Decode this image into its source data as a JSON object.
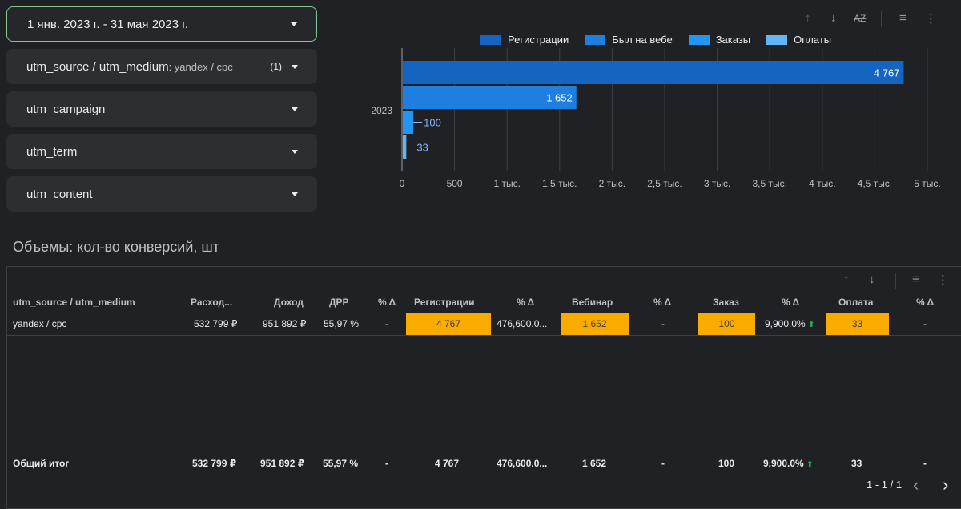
{
  "filters": {
    "date_range": "1 янв. 2023 г. - 31 мая 2023 г.",
    "source_medium": {
      "label": "utm_source / utm_medium",
      "value": ": yandex / cpc",
      "count": "(1)"
    },
    "campaign": "utm_campaign",
    "term": "utm_term",
    "content": "utm_content"
  },
  "chart_toolbar": {
    "sort_up": "↑",
    "sort_down": "↓",
    "sort_az": "AZ",
    "filter": "≡",
    "more": "⋮"
  },
  "chart_data": {
    "type": "bar",
    "orientation": "horizontal",
    "categories": [
      "2023"
    ],
    "series": [
      {
        "name": "Регистрации",
        "values": [
          4767
        ],
        "label": "4 767",
        "color": "#1565c0"
      },
      {
        "name": "Был на вебе",
        "values": [
          1652
        ],
        "label": "1 652",
        "color": "#1e7fe0"
      },
      {
        "name": "Заказы",
        "values": [
          100
        ],
        "label": "100",
        "color": "#2196f3"
      },
      {
        "name": "Оплаты",
        "values": [
          33
        ],
        "label": "33",
        "color": "#64b5f6"
      }
    ],
    "xlim": [
      0,
      5000
    ],
    "x_ticks": [
      0,
      500,
      1000,
      1500,
      2000,
      2500,
      3000,
      3500,
      4000,
      4500,
      5000
    ],
    "x_tick_labels": [
      "0",
      "500",
      "1 тыс.",
      "1,5 тыс.",
      "2 тыс.",
      "2,5 тыс.",
      "3 тыс.",
      "3,5 тыс.",
      "4 тыс.",
      "4,5 тыс.",
      "5 тыс."
    ],
    "grid": true,
    "legend": "top"
  },
  "section_title": "Объемы: кол-во конверсий, шт",
  "table": {
    "headers": [
      "utm_source / utm_medium",
      "Расход...",
      "Доход",
      "ДРР",
      "% Δ",
      "Регистрации",
      "% Δ",
      "Вебинар",
      "% Δ",
      "Заказ",
      "% Δ",
      "Оплата",
      "% Δ"
    ],
    "row": [
      "yandex / cpc",
      "532 799 ₽",
      "951 892 ₽",
      "55,97 %",
      "-",
      "4 767",
      "476,600.0...",
      "1 652",
      "-",
      "100",
      "9,900.0%",
      "33",
      "-"
    ],
    "total": [
      "Общий итог",
      "532 799 ₽",
      "951 892 ₽",
      "55,97 %",
      "-",
      "4 767",
      "476,600.0...",
      "1 652",
      "-",
      "100",
      "9,900.0%",
      "33",
      "-"
    ],
    "highlight_color": "#f9ab00"
  },
  "pager": {
    "range": "1 - 1 / 1",
    "prev": "‹",
    "next": "›"
  }
}
